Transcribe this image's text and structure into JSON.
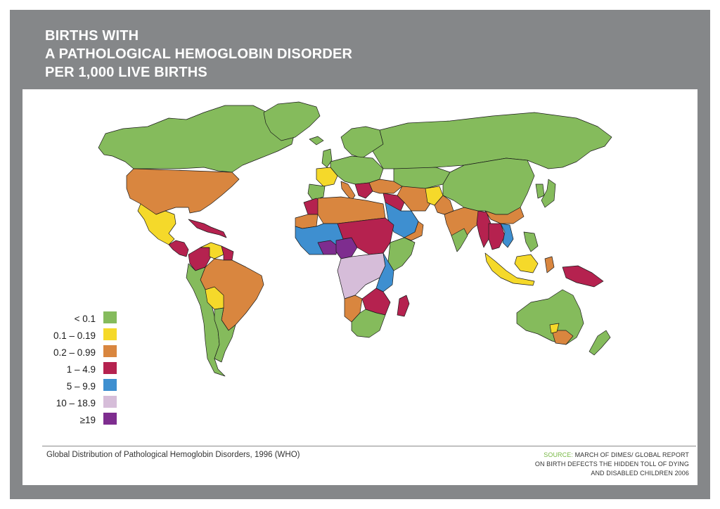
{
  "title": {
    "lines": [
      "BIRTHS WITH",
      "A PATHOLOGICAL HEMOGLOBIN DISORDER",
      "PER 1,000 LIVE BIRTHS"
    ]
  },
  "legend": {
    "items": [
      {
        "label": "< 0.1",
        "color": "#85bb5c"
      },
      {
        "label": "0.1 – 0.19",
        "color": "#f5d92a"
      },
      {
        "label": "0.2 – 0.99",
        "color": "#d9863f"
      },
      {
        "label": "1 – 4.9",
        "color": "#b5224f"
      },
      {
        "label": "5 – 9.9",
        "color": "#3e8fd0"
      },
      {
        "label": "10 – 18.9",
        "color": "#d6bdd9"
      },
      {
        "label": "≥19",
        "color": "#7e2d8f"
      }
    ]
  },
  "caption": "Global Distribution of Pathological Hemoglobin Disorders, 1996 (WHO)",
  "source": {
    "key": "SOURCE:",
    "line1": "MARCH OF DIMES/ GLOBAL REPORT",
    "line2": "ON BIRTH DEFECTS THE HIDDEN TOLL OF DYING",
    "line3": "AND DISABLED CHILDREN 2006"
  },
  "colors": {
    "frame": "#858789",
    "border": "#1a1a1a"
  }
}
